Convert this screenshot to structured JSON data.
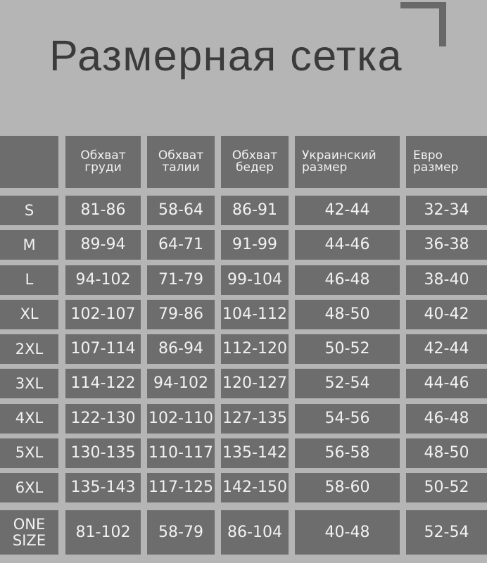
{
  "title": "Размерная сетка",
  "colors": {
    "background": "#b5b5b5",
    "cell": "#6d6d6d",
    "text": "#f2f2f2",
    "title": "#3b3b3b"
  },
  "headers": [
    "",
    "Обхват\nгруди",
    "Обхват\nталии",
    "Обхват\nбедер",
    "Украинский\nразмер",
    "Евро\nразмер"
  ],
  "rows": [
    [
      "S",
      "81-86",
      "58-64",
      "86-91",
      "42-44",
      "32-34"
    ],
    [
      "M",
      "89-94",
      "64-71",
      "91-99",
      "44-46",
      "36-38"
    ],
    [
      "L",
      "94-102",
      "71-79",
      "99-104",
      "46-48",
      "38-40"
    ],
    [
      "XL",
      "102-107",
      "79-86",
      "104-112",
      "48-50",
      "40-42"
    ],
    [
      "2XL",
      "107-114",
      "86-94",
      "112-120",
      "50-52",
      "42-44"
    ],
    [
      "3XL",
      "114-122",
      "94-102",
      "120-127",
      "52-54",
      "44-46"
    ],
    [
      "4XL",
      "122-130",
      "102-110",
      "127-135",
      "54-56",
      "46-48"
    ],
    [
      "5XL",
      "130-135",
      "110-117",
      "135-142",
      "56-58",
      "48-50"
    ],
    [
      "6XL",
      "135-143",
      "117-125",
      "142-150",
      "58-60",
      "50-52"
    ],
    [
      "ONE\nSIZE",
      "81-102",
      "58-79",
      "86-104",
      "40-48",
      "52-54"
    ]
  ]
}
